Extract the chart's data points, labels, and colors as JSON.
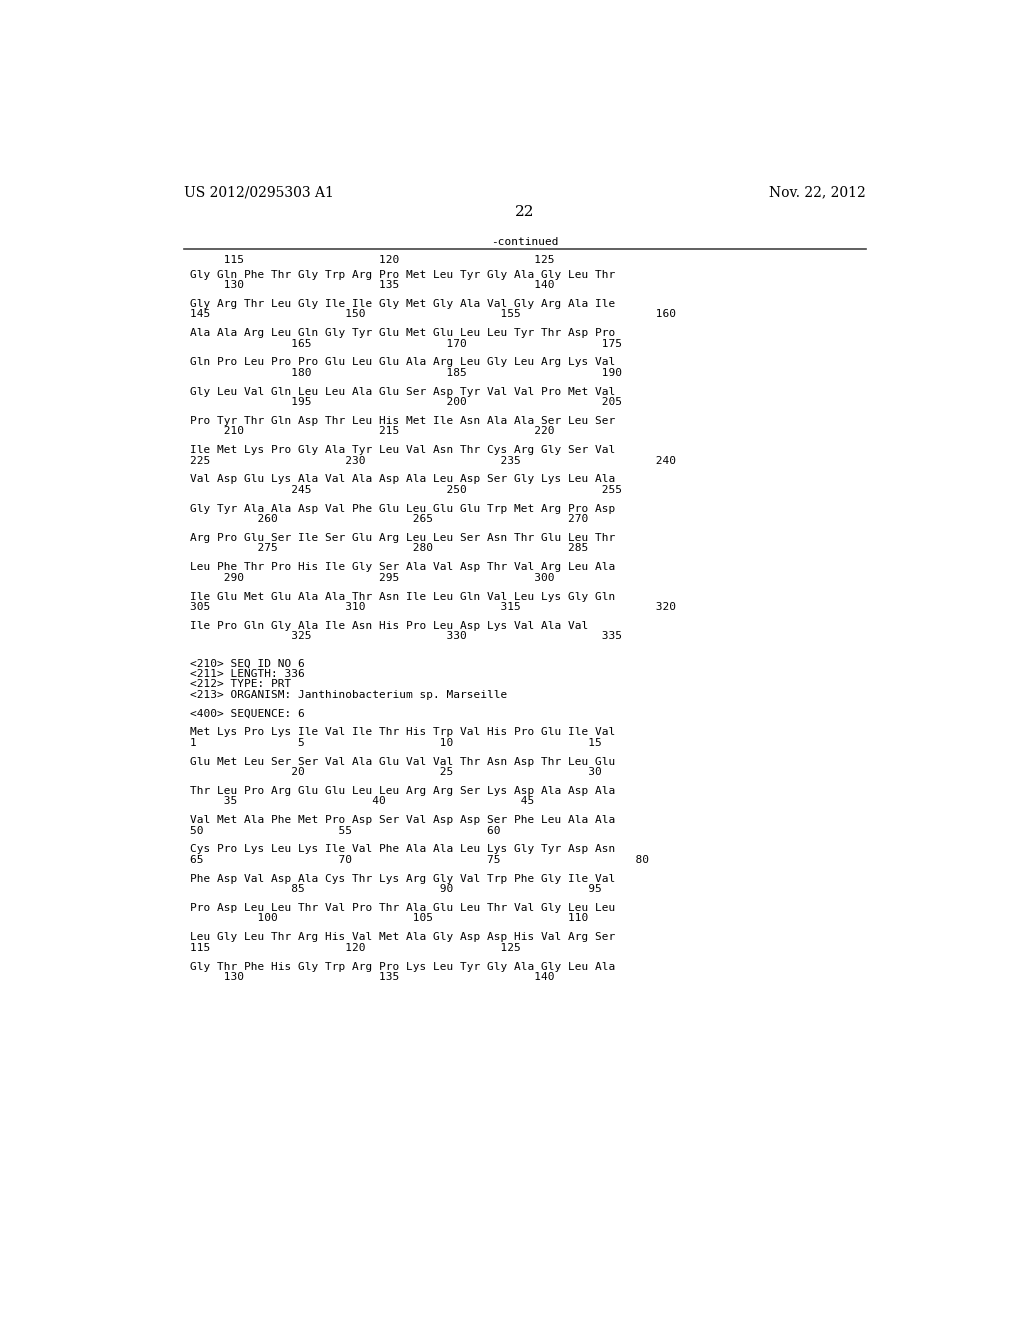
{
  "header_left": "US 2012/0295303 A1",
  "header_right": "Nov. 22, 2012",
  "page_number": "22",
  "continued_label": "-continued",
  "background_color": "#ffffff",
  "text_color": "#000000",
  "font_size": 8.0,
  "header_font_size": 10,
  "mono_font": "DejaVu Sans Mono",
  "content_lines": [
    {
      "type": "numline",
      "text": "     115                    120                    125"
    },
    {
      "type": "blank_small"
    },
    {
      "type": "seqline",
      "text": "Gly Gln Phe Thr Gly Trp Arg Pro Met Leu Tyr Gly Ala Gly Leu Thr"
    },
    {
      "type": "numline",
      "text": "     130                    135                    140"
    },
    {
      "type": "blank"
    },
    {
      "type": "seqline",
      "text": "Gly Arg Thr Leu Gly Ile Ile Gly Met Gly Ala Val Gly Arg Ala Ile"
    },
    {
      "type": "numline",
      "text": "145                    150                    155                    160"
    },
    {
      "type": "blank"
    },
    {
      "type": "seqline",
      "text": "Ala Ala Arg Leu Gln Gly Tyr Glu Met Glu Leu Leu Tyr Thr Asp Pro"
    },
    {
      "type": "numline",
      "text": "               165                    170                    175"
    },
    {
      "type": "blank"
    },
    {
      "type": "seqline",
      "text": "Gln Pro Leu Pro Pro Glu Leu Glu Ala Arg Leu Gly Leu Arg Lys Val"
    },
    {
      "type": "numline",
      "text": "               180                    185                    190"
    },
    {
      "type": "blank"
    },
    {
      "type": "seqline",
      "text": "Gly Leu Val Gln Leu Leu Ala Glu Ser Asp Tyr Val Val Pro Met Val"
    },
    {
      "type": "numline",
      "text": "               195                    200                    205"
    },
    {
      "type": "blank"
    },
    {
      "type": "seqline",
      "text": "Pro Tyr Thr Gln Asp Thr Leu His Met Ile Asn Ala Ala Ser Leu Ser"
    },
    {
      "type": "numline",
      "text": "     210                    215                    220"
    },
    {
      "type": "blank"
    },
    {
      "type": "seqline",
      "text": "Ile Met Lys Pro Gly Ala Tyr Leu Val Asn Thr Cys Arg Gly Ser Val"
    },
    {
      "type": "numline",
      "text": "225                    230                    235                    240"
    },
    {
      "type": "blank"
    },
    {
      "type": "seqline",
      "text": "Val Asp Glu Lys Ala Val Ala Asp Ala Leu Asp Ser Gly Lys Leu Ala"
    },
    {
      "type": "numline",
      "text": "               245                    250                    255"
    },
    {
      "type": "blank"
    },
    {
      "type": "seqline",
      "text": "Gly Tyr Ala Ala Asp Val Phe Glu Leu Glu Glu Trp Met Arg Pro Asp"
    },
    {
      "type": "numline",
      "text": "          260                    265                    270"
    },
    {
      "type": "blank"
    },
    {
      "type": "seqline",
      "text": "Arg Pro Glu Ser Ile Ser Glu Arg Leu Leu Ser Asn Thr Glu Leu Thr"
    },
    {
      "type": "numline",
      "text": "          275                    280                    285"
    },
    {
      "type": "blank"
    },
    {
      "type": "seqline",
      "text": "Leu Phe Thr Pro His Ile Gly Ser Ala Val Asp Thr Val Arg Leu Ala"
    },
    {
      "type": "numline",
      "text": "     290                    295                    300"
    },
    {
      "type": "blank"
    },
    {
      "type": "seqline",
      "text": "Ile Glu Met Glu Ala Ala Thr Asn Ile Leu Gln Val Leu Lys Gly Gln"
    },
    {
      "type": "numline",
      "text": "305                    310                    315                    320"
    },
    {
      "type": "blank"
    },
    {
      "type": "seqline",
      "text": "Ile Pro Gln Gly Ala Ile Asn His Pro Leu Asp Lys Val Ala Val"
    },
    {
      "type": "numline",
      "text": "               325                    330                    335"
    },
    {
      "type": "blank"
    },
    {
      "type": "blank"
    },
    {
      "type": "meta",
      "text": "<210> SEQ ID NO 6"
    },
    {
      "type": "meta",
      "text": "<211> LENGTH: 336"
    },
    {
      "type": "meta",
      "text": "<212> TYPE: PRT"
    },
    {
      "type": "meta",
      "text": "<213> ORGANISM: Janthinobacterium sp. Marseille"
    },
    {
      "type": "blank"
    },
    {
      "type": "meta",
      "text": "<400> SEQUENCE: 6"
    },
    {
      "type": "blank"
    },
    {
      "type": "seqline",
      "text": "Met Lys Pro Lys Ile Val Ile Thr His Trp Val His Pro Glu Ile Val"
    },
    {
      "type": "numline",
      "text": "1               5                    10                    15"
    },
    {
      "type": "blank"
    },
    {
      "type": "seqline",
      "text": "Glu Met Leu Ser Ser Val Ala Glu Val Val Thr Asn Asp Thr Leu Glu"
    },
    {
      "type": "numline",
      "text": "               20                    25                    30"
    },
    {
      "type": "blank"
    },
    {
      "type": "seqline",
      "text": "Thr Leu Pro Arg Glu Glu Leu Leu Arg Arg Ser Lys Asp Ala Asp Ala"
    },
    {
      "type": "numline",
      "text": "     35                    40                    45"
    },
    {
      "type": "blank"
    },
    {
      "type": "seqline",
      "text": "Val Met Ala Phe Met Pro Asp Ser Val Asp Asp Ser Phe Leu Ala Ala"
    },
    {
      "type": "numline",
      "text": "50                    55                    60"
    },
    {
      "type": "blank"
    },
    {
      "type": "seqline",
      "text": "Cys Pro Lys Leu Lys Ile Val Phe Ala Ala Leu Lys Gly Tyr Asp Asn"
    },
    {
      "type": "numline",
      "text": "65                    70                    75                    80"
    },
    {
      "type": "blank"
    },
    {
      "type": "seqline",
      "text": "Phe Asp Val Asp Ala Cys Thr Lys Arg Gly Val Trp Phe Gly Ile Val"
    },
    {
      "type": "numline",
      "text": "               85                    90                    95"
    },
    {
      "type": "blank"
    },
    {
      "type": "seqline",
      "text": "Pro Asp Leu Leu Thr Val Pro Thr Ala Glu Leu Thr Val Gly Leu Leu"
    },
    {
      "type": "numline",
      "text": "          100                    105                    110"
    },
    {
      "type": "blank"
    },
    {
      "type": "seqline",
      "text": "Leu Gly Leu Thr Arg His Val Met Ala Gly Asp Asp His Val Arg Ser"
    },
    {
      "type": "numline",
      "text": "115                    120                    125"
    },
    {
      "type": "blank"
    },
    {
      "type": "seqline",
      "text": "Gly Thr Phe His Gly Trp Arg Pro Lys Leu Tyr Gly Ala Gly Leu Ala"
    },
    {
      "type": "numline",
      "text": "     130                    135                    140"
    }
  ]
}
